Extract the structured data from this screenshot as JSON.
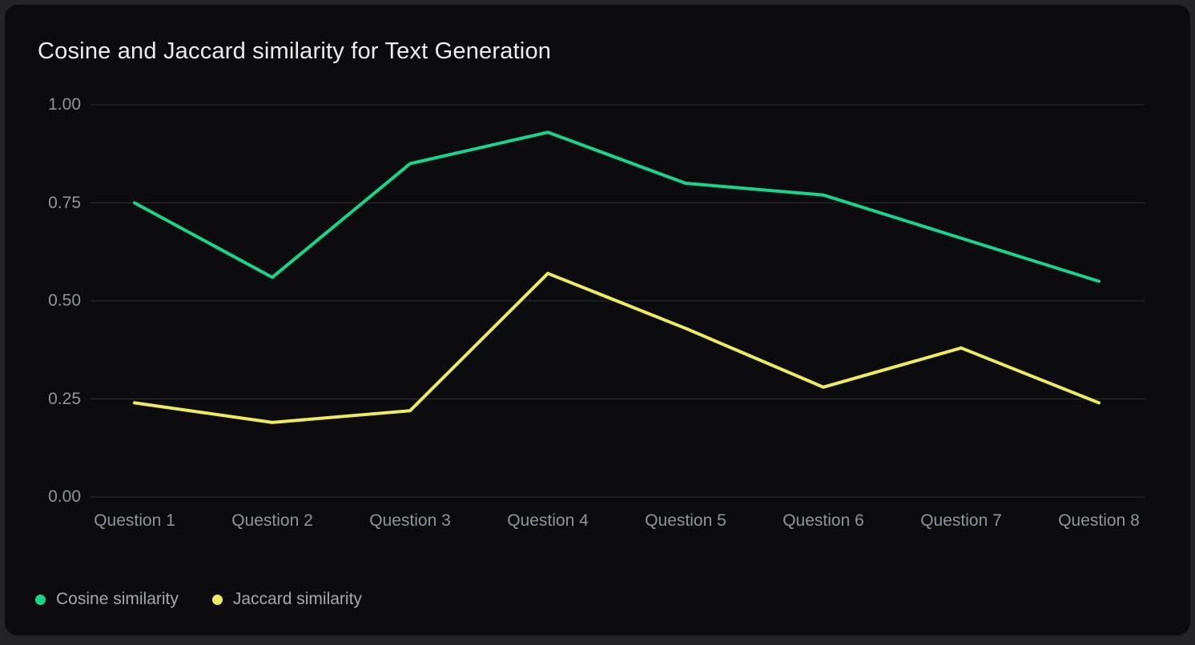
{
  "chart_data": {
    "type": "line",
    "title": "Cosine and Jaccard similarity for Text Generation",
    "categories": [
      "Question 1",
      "Question 2",
      "Question 3",
      "Question 4",
      "Question 5",
      "Question 6",
      "Question 7",
      "Question 8"
    ],
    "series": [
      {
        "name": "Cosine similarity",
        "color": "#18d58c",
        "values": [
          0.75,
          0.56,
          0.85,
          0.93,
          0.8,
          0.77,
          0.66,
          0.55
        ]
      },
      {
        "name": "Jaccard similarity",
        "color": "#edec60",
        "values": [
          0.24,
          0.19,
          0.22,
          0.57,
          0.43,
          0.28,
          0.38,
          0.24
        ]
      }
    ],
    "xlabel": "",
    "ylabel": "",
    "ylim": [
      0.0,
      1.0
    ],
    "y_tick_labels": [
      "1.00",
      "0.75",
      "0.50",
      "0.25",
      "0.00"
    ],
    "grid": "horizontal",
    "legend_position": "bottom-left"
  },
  "colors": {
    "panel_background": "#0c0c0e",
    "page_background": "#242428",
    "gridline": "#2e2f33",
    "tick_text": "#8f939b",
    "legend_text": "#a5a9af",
    "title_text": "#ebeced",
    "cosine_line": "#18d58c",
    "jaccard_line": "#edec60"
  }
}
